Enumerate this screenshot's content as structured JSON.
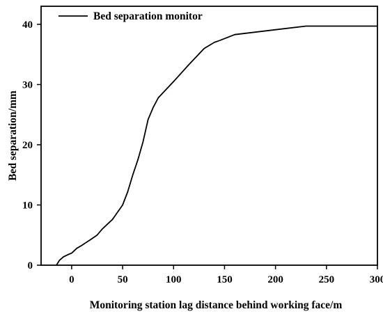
{
  "chart_data": {
    "type": "line",
    "title": "",
    "xlabel": "Monitoring station lag distance behind working face/m",
    "ylabel": "Bed separation/mm",
    "xlim": [
      -30,
      300
    ],
    "ylim": [
      0,
      43
    ],
    "x_ticks": [
      0,
      50,
      100,
      150,
      200,
      250,
      300
    ],
    "y_ticks": [
      0,
      10,
      20,
      30,
      40
    ],
    "x_tick_labels": [
      "0",
      "50",
      "100",
      "150",
      "200",
      "250",
      "300"
    ],
    "y_tick_labels": [
      "0",
      "10",
      "20",
      "30",
      "40"
    ],
    "grid": false,
    "legend": {
      "position": "top-left",
      "entries": [
        "Bed separation monitor"
      ]
    },
    "line_color": "#000000",
    "series": [
      {
        "name": "Bed separation monitor",
        "x": [
          -15,
          -12,
          -8,
          -3,
          0,
          5,
          10,
          18,
          25,
          30,
          35,
          40,
          45,
          50,
          55,
          60,
          65,
          70,
          75,
          80,
          85,
          100,
          115,
          130,
          140,
          145,
          160,
          180,
          200,
          230,
          250,
          300
        ],
        "y": [
          0,
          0.8,
          1.4,
          1.8,
          2.0,
          2.8,
          3.3,
          4.2,
          5.0,
          6.0,
          6.8,
          7.6,
          8.8,
          10.0,
          12.2,
          15.0,
          17.5,
          20.5,
          24.2,
          26.2,
          27.8,
          30.5,
          33.3,
          36.0,
          37.0,
          37.3,
          38.3,
          38.7,
          39.1,
          39.7,
          39.7,
          39.7
        ]
      }
    ]
  }
}
